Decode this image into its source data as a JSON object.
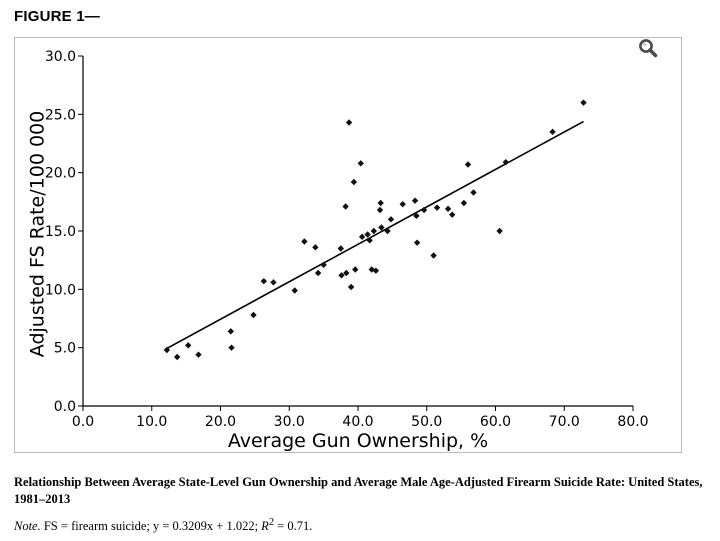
{
  "figure_heading": "FIGURE 1—",
  "zoom_icon": "magnifier-icon",
  "caption": "Relationship Between Average State-Level Gun Ownership and Average Male Age-Adjusted Firearm Suicide Rate: United States, 1981–2013",
  "note": {
    "label": "Note.",
    "text": "FS = firearm suicide; y = 0.3209x + 1.022;",
    "r2_symbol": "R",
    "r2_exp": "2",
    "r2_value": " = 0.71."
  },
  "colors": {
    "marker": "#111111",
    "line": "#000000",
    "frame": "#bdbdbd"
  },
  "chart_data": {
    "type": "scatter",
    "xlabel": "Average Gun Ownership, %",
    "ylabel": "Adjusted FS Rate/100 000",
    "xlim": [
      0,
      80
    ],
    "ylim": [
      0,
      30
    ],
    "xticks": [
      0,
      10,
      20,
      30,
      40,
      50,
      60,
      70,
      80
    ],
    "yticks": [
      0,
      5,
      10,
      15,
      20,
      25,
      30
    ],
    "xtick_labels": [
      "0.0",
      "10.0",
      "20.0",
      "30.0",
      "40.0",
      "50.0",
      "60.0",
      "70.0",
      "80.0"
    ],
    "ytick_labels": [
      "0.0",
      "5.0",
      "10.0",
      "15.0",
      "20.0",
      "25.0",
      "30.0"
    ],
    "grid": false,
    "points": [
      [
        12.2,
        4.8
      ],
      [
        13.7,
        4.2
      ],
      [
        15.3,
        5.2
      ],
      [
        16.8,
        4.4
      ],
      [
        21.5,
        6.4
      ],
      [
        21.6,
        5.0
      ],
      [
        24.8,
        7.8
      ],
      [
        26.3,
        10.7
      ],
      [
        27.7,
        10.6
      ],
      [
        30.8,
        9.9
      ],
      [
        32.2,
        14.1
      ],
      [
        33.8,
        13.6
      ],
      [
        34.2,
        11.4
      ],
      [
        35.0,
        12.1
      ],
      [
        37.5,
        13.5
      ],
      [
        37.6,
        11.2
      ],
      [
        38.2,
        17.1
      ],
      [
        38.3,
        11.4
      ],
      [
        38.7,
        24.3
      ],
      [
        39.0,
        10.2
      ],
      [
        39.4,
        19.2
      ],
      [
        39.6,
        11.7
      ],
      [
        40.4,
        20.8
      ],
      [
        40.6,
        14.5
      ],
      [
        41.4,
        14.7
      ],
      [
        41.7,
        14.2
      ],
      [
        42.0,
        11.7
      ],
      [
        42.3,
        15.0
      ],
      [
        42.6,
        11.6
      ],
      [
        43.2,
        16.8
      ],
      [
        43.3,
        17.4
      ],
      [
        43.4,
        15.3
      ],
      [
        44.3,
        15.0
      ],
      [
        44.8,
        16.0
      ],
      [
        46.5,
        17.3
      ],
      [
        48.3,
        17.6
      ],
      [
        48.5,
        16.3
      ],
      [
        48.6,
        14.0
      ],
      [
        49.6,
        16.8
      ],
      [
        51.0,
        12.9
      ],
      [
        51.5,
        17.0
      ],
      [
        53.1,
        16.9
      ],
      [
        53.7,
        16.4
      ],
      [
        55.4,
        17.4
      ],
      [
        56.0,
        20.7
      ],
      [
        56.8,
        18.3
      ],
      [
        60.6,
        15.0
      ],
      [
        61.5,
        20.9
      ],
      [
        68.3,
        23.5
      ],
      [
        72.8,
        26.0
      ]
    ],
    "trendline": {
      "slope": 0.3209,
      "intercept": 1.022,
      "x_range": [
        12,
        72.8
      ]
    }
  }
}
